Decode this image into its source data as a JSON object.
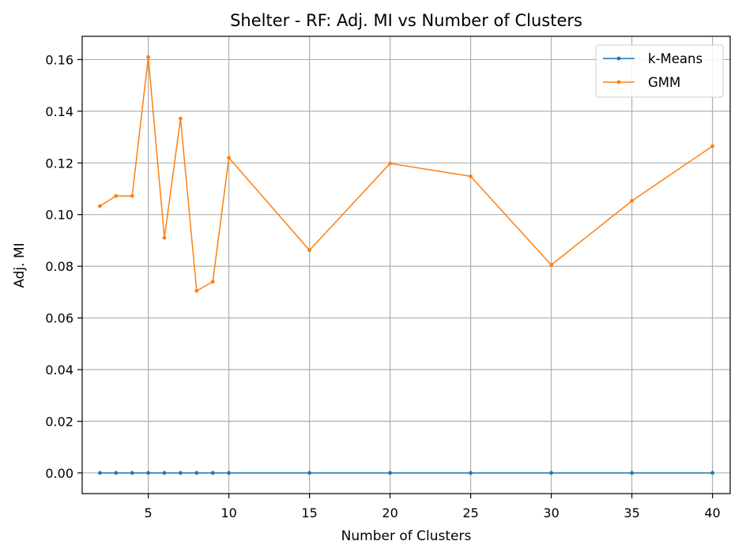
{
  "chart_data": {
    "type": "line",
    "title": "Shelter - RF: Adj. MI vs Number of Clusters",
    "xlabel": "Number of Clusters",
    "ylabel": "Adj. MI",
    "xlim": [
      0.9,
      41.1
    ],
    "ylim": [
      -0.008,
      0.169
    ],
    "xticks": [
      5,
      10,
      15,
      20,
      25,
      30,
      35,
      40
    ],
    "yticks": [
      0.0,
      0.02,
      0.04,
      0.06,
      0.08,
      0.1,
      0.12,
      0.14,
      0.16
    ],
    "ytick_labels": [
      "0.00",
      "0.02",
      "0.04",
      "0.06",
      "0.08",
      "0.10",
      "0.12",
      "0.14",
      "0.16"
    ],
    "grid": true,
    "legend_position": "top-right",
    "x": [
      2,
      3,
      4,
      5,
      6,
      7,
      8,
      9,
      10,
      15,
      20,
      25,
      30,
      35,
      40
    ],
    "series": [
      {
        "name": "k-Means",
        "color": "#1f77b4",
        "values": [
          0.0,
          0.0,
          0.0,
          0.0,
          0.0,
          0.0,
          0.0,
          0.0,
          0.0,
          0.0,
          0.0,
          0.0,
          0.0,
          0.0,
          0.0
        ]
      },
      {
        "name": "GMM",
        "color": "#ff7f0e",
        "values": [
          0.1033,
          0.1072,
          0.1072,
          0.161,
          0.091,
          0.1372,
          0.0705,
          0.074,
          0.122,
          0.0862,
          0.1198,
          0.1148,
          0.0805,
          0.1053,
          0.1265
        ]
      }
    ]
  }
}
